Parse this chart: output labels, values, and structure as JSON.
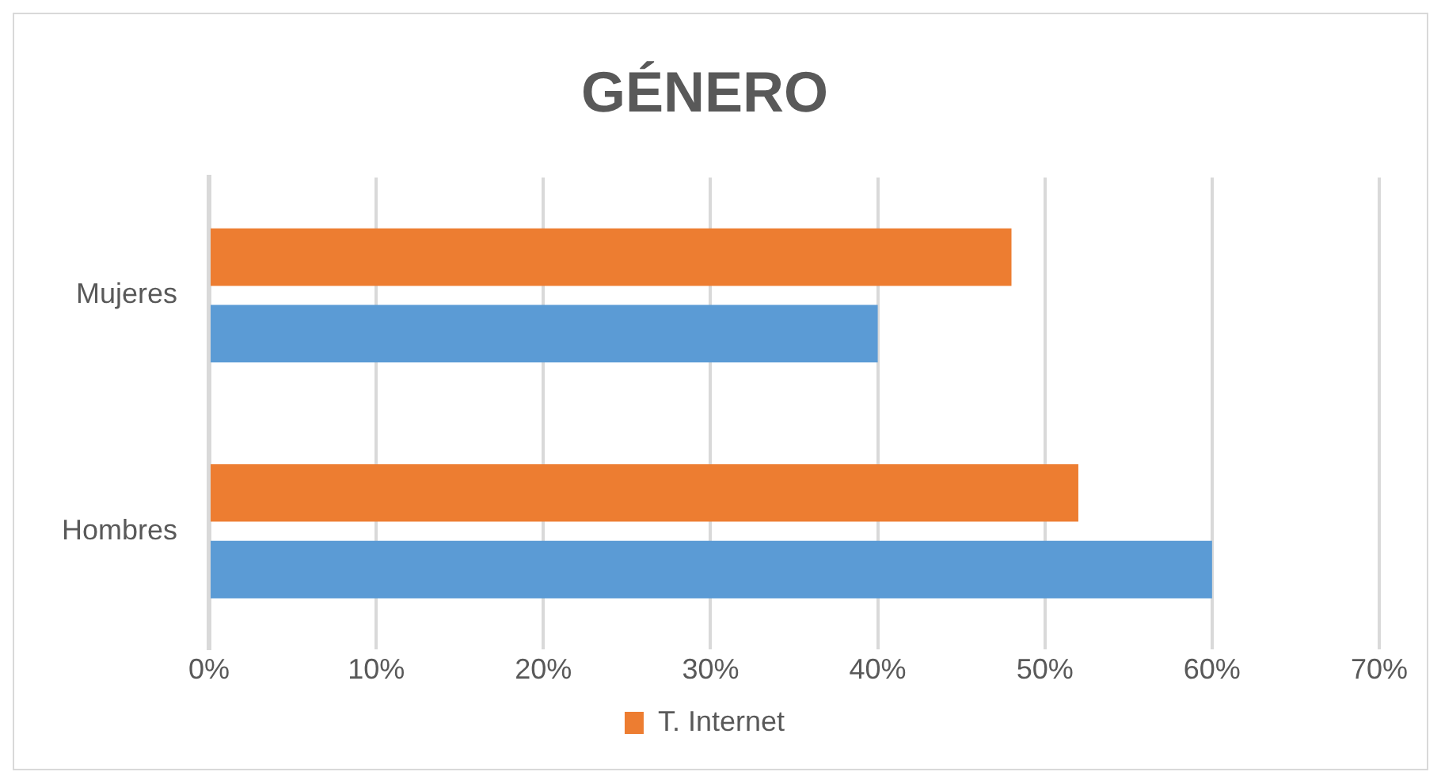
{
  "chart_data": {
    "type": "bar",
    "orientation": "horizontal",
    "title": "GÉNERO",
    "categories": [
      "Mujeres",
      "Hombres"
    ],
    "series": [
      {
        "name": "T. Internet",
        "color": "#ed7d31",
        "values": [
          48,
          52
        ]
      },
      {
        "color": "#5b9bd5",
        "values": [
          40,
          60
        ]
      }
    ],
    "xlim": [
      0,
      70
    ],
    "xticks": [
      {
        "value": 0,
        "label": "0%"
      },
      {
        "value": 10,
        "label": "10%"
      },
      {
        "value": 20,
        "label": "20%"
      },
      {
        "value": 30,
        "label": "30%"
      },
      {
        "value": 40,
        "label": "40%"
      },
      {
        "value": 50,
        "label": "50%"
      },
      {
        "value": 60,
        "label": "60%"
      },
      {
        "value": 70,
        "label": "70%"
      }
    ],
    "grid": "x",
    "legend": "bottom"
  }
}
